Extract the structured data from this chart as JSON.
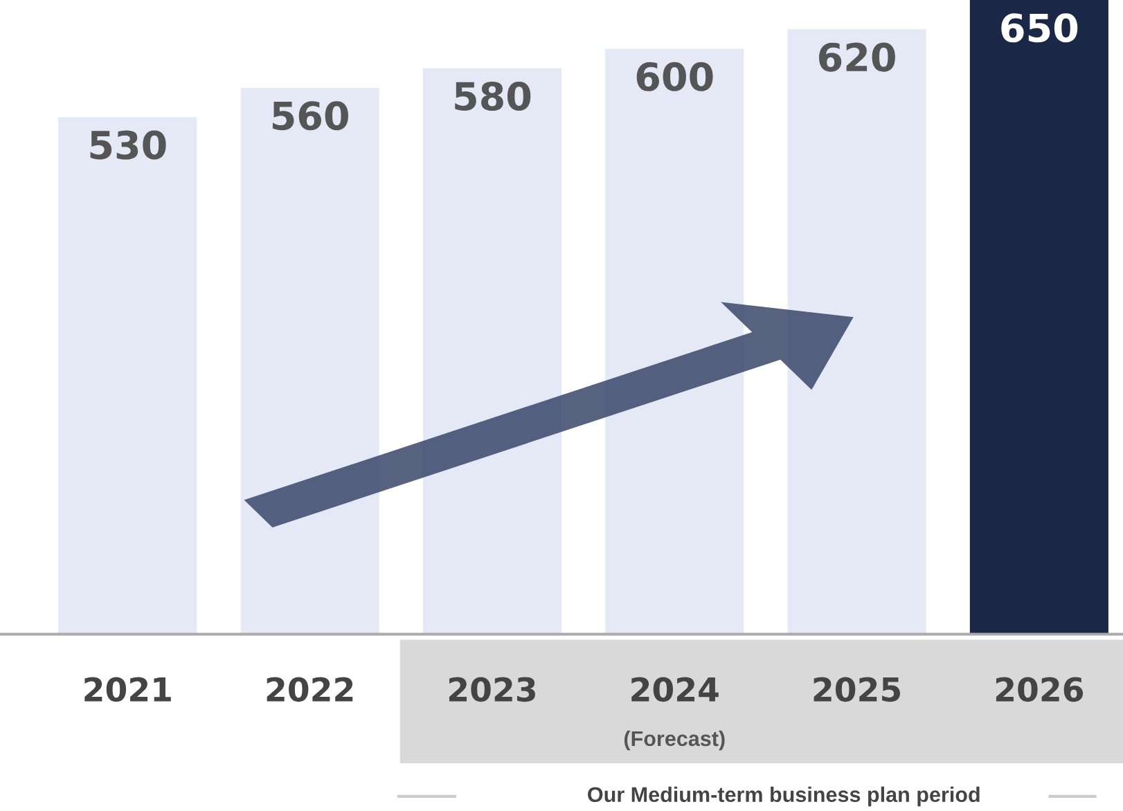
{
  "chart_data": {
    "type": "bar",
    "categories": [
      "2021",
      "2022",
      "2023",
      "2024",
      "2025",
      "2026"
    ],
    "values": [
      530,
      560,
      580,
      600,
      620,
      650
    ],
    "colors": [
      "#e4e9f5",
      "#e4e9f5",
      "#e4e9f5",
      "#e4e9f5",
      "#e4e9f5",
      "#1b2747"
    ],
    "data_labels": true,
    "tick_labels": "x",
    "grid": false,
    "annotations": [
      "(Forecast)",
      "Our Medium-term business plan period"
    ]
  }
}
